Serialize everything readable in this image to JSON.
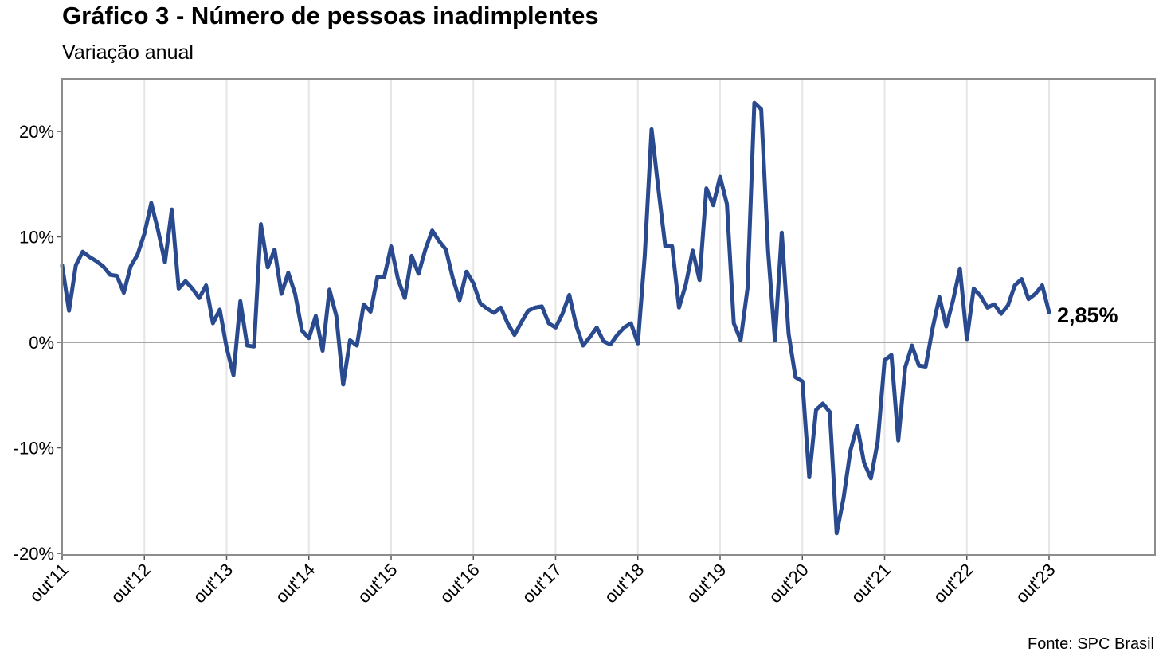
{
  "header": {
    "title": "Gráfico 3 - Número de pessoas inadimplentes",
    "subtitle": "Variação anual"
  },
  "footer": {
    "source": "Fonte: SPC Brasil"
  },
  "colors": {
    "line": "#2a4a8f",
    "frame": "#8c8c8c",
    "grid": "#e6e6e6",
    "zero": "#a6a6a6"
  },
  "chart_data": {
    "type": "line",
    "title": "Gráfico 3 - Número de pessoas inadimplentes",
    "subtitle": "Variação anual",
    "xlabel": "",
    "ylabel": "",
    "x_start": "out'11",
    "x_end": "out'23",
    "x_tick_labels": [
      "out'11",
      "out'12",
      "out'13",
      "out'14",
      "out'15",
      "out'16",
      "out'17",
      "out'18",
      "out'19",
      "out'20",
      "out'21",
      "out'22",
      "out'23"
    ],
    "y_tick_labels": [
      "20%",
      "10%",
      "0%",
      "-10%",
      "-20%"
    ],
    "y_ticks": [
      20,
      10,
      0,
      -10,
      -20
    ],
    "ylim": [
      -20,
      24
    ],
    "grid": "vertical lines at x ticks, horizontal line at 0%",
    "end_label": "2,85%",
    "series": [
      {
        "values": [
          7.3,
          3.0,
          7.3,
          8.6,
          8.1,
          7.7,
          7.2,
          6.4,
          6.3,
          4.7,
          7.2,
          8.3,
          10.3,
          13.2,
          10.6,
          7.6,
          12.6,
          5.1,
          5.8,
          5.1,
          4.2,
          5.4,
          1.8,
          3.1,
          -0.5,
          -3.1,
          3.9,
          -0.3,
          -0.4,
          11.2,
          7.1,
          8.8,
          4.6,
          6.6,
          4.6,
          1.1,
          0.4,
          2.5,
          -0.8,
          5.0,
          2.5,
          -4.0,
          0.2,
          -0.3,
          3.6,
          2.9,
          6.2,
          6.2,
          9.1,
          6.0,
          4.2,
          8.2,
          6.5,
          8.8,
          10.6,
          9.6,
          8.8,
          6.1,
          4.0,
          6.7,
          5.6,
          3.7,
          3.2,
          2.8,
          3.3,
          1.8,
          0.7,
          1.9,
          3.0,
          3.3,
          3.4,
          1.8,
          1.4,
          2.7,
          4.5,
          1.6,
          -0.3,
          0.5,
          1.4,
          0.1,
          -0.2,
          0.7,
          1.4,
          1.8,
          -0.1,
          8.2,
          20.2,
          14.5,
          9.1,
          9.1,
          3.3,
          5.5,
          8.7,
          5.9,
          14.6,
          13.0,
          15.7,
          13.1,
          1.8,
          0.2,
          5.1,
          22.7,
          22.1,
          8.7,
          0.2,
          10.4,
          0.8,
          -3.3,
          -3.7,
          -12.8,
          -6.4,
          -5.8,
          -6.6,
          -18.1,
          -14.8,
          -10.3,
          -7.9,
          -11.4,
          -12.9,
          -9.4,
          -1.7,
          -1.2,
          -9.3,
          -2.4,
          -0.3,
          -2.2,
          -2.3,
          1.3,
          4.3,
          1.5,
          4.0,
          7.0,
          0.3,
          5.1,
          4.4,
          3.3,
          3.6,
          2.7,
          3.5,
          5.4,
          6.0,
          4.1,
          4.6,
          5.4,
          2.85
        ]
      }
    ]
  }
}
